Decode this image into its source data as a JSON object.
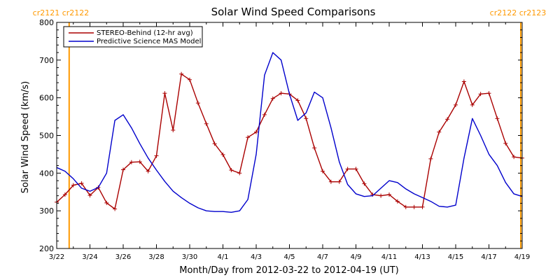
{
  "chart_data": {
    "type": "line",
    "title": "Solar Wind Speed Comparisons",
    "xlabel": "Month/Day from 2012-03-22 to 2012-04-19 (UT)",
    "ylabel": "Solar Wind Speed (km/s)",
    "xlim": [
      "2012-03-22",
      "2012-04-19"
    ],
    "ylim": [
      200,
      800
    ],
    "x_ticks": [
      "2012-03-22",
      "2012-03-24",
      "2012-03-26",
      "2012-03-28",
      "2012-03-30",
      "2012-04-01",
      "2012-04-03",
      "2012-04-05",
      "2012-04-07",
      "2012-04-09",
      "2012-04-11",
      "2012-04-13",
      "2012-04-15",
      "2012-04-17",
      "2012-04-19"
    ],
    "x_tick_labels": [
      "3/22",
      "3/24",
      "3/26",
      "3/28",
      "3/30",
      "4/1",
      "4/3",
      "4/5",
      "4/7",
      "4/9",
      "4/11",
      "4/13",
      "4/15",
      "4/17",
      "4/19"
    ],
    "y_ticks": [
      200,
      300,
      400,
      500,
      600,
      700,
      800
    ],
    "y_tick_labels": [
      "200",
      "300",
      "400",
      "500",
      "600",
      "700",
      "800"
    ],
    "grid": false,
    "legend_position": "top-left",
    "carrington_markers": [
      {
        "x": "2012-03-22 18:00",
        "label": "cr2121 cr2122",
        "color": "#ff9900"
      },
      {
        "x": "2012-04-18 22:00",
        "label": "cr2122 cr2123",
        "color": "#ff9900"
      }
    ],
    "series": [
      {
        "name": "STEREO-Behind (12-hr avg)",
        "color": "#aa0000",
        "marker": "plus",
        "x": [
          "2012-03-22 00:00",
          "2012-03-22 12:00",
          "2012-03-23 00:00",
          "2012-03-23 12:00",
          "2012-03-24 00:00",
          "2012-03-24 12:00",
          "2012-03-25 00:00",
          "2012-03-25 12:00",
          "2012-03-26 00:00",
          "2012-03-26 12:00",
          "2012-03-27 00:00",
          "2012-03-27 12:00",
          "2012-03-28 00:00",
          "2012-03-28 12:00",
          "2012-03-29 00:00",
          "2012-03-29 12:00",
          "2012-03-30 00:00",
          "2012-03-30 12:00",
          "2012-03-31 00:00",
          "2012-03-31 12:00",
          "2012-04-01 00:00",
          "2012-04-01 12:00",
          "2012-04-02 00:00",
          "2012-04-02 12:00",
          "2012-04-03 00:00",
          "2012-04-03 12:00",
          "2012-04-04 00:00",
          "2012-04-04 12:00",
          "2012-04-05 00:00",
          "2012-04-05 12:00",
          "2012-04-06 00:00",
          "2012-04-06 12:00",
          "2012-04-07 00:00",
          "2012-04-07 12:00",
          "2012-04-08 00:00",
          "2012-04-08 12:00",
          "2012-04-09 00:00",
          "2012-04-09 12:00",
          "2012-04-10 00:00",
          "2012-04-10 12:00",
          "2012-04-11 00:00",
          "2012-04-11 12:00",
          "2012-04-12 00:00",
          "2012-04-12 12:00",
          "2012-04-13 00:00",
          "2012-04-13 12:00",
          "2012-04-14 00:00",
          "2012-04-14 12:00",
          "2012-04-15 00:00",
          "2012-04-15 12:00",
          "2012-04-16 00:00",
          "2012-04-16 12:00",
          "2012-04-17 00:00",
          "2012-04-17 12:00",
          "2012-04-18 00:00",
          "2012-04-18 12:00",
          "2012-04-19 00:00"
        ],
        "values": [
          323,
          343,
          368,
          373,
          341,
          362,
          321,
          305,
          409,
          429,
          430,
          405,
          446,
          612,
          514,
          663,
          648,
          586,
          531,
          478,
          449,
          408,
          400,
          495,
          509,
          555,
          598,
          612,
          610,
          593,
          545,
          467,
          405,
          377,
          377,
          411,
          411,
          372,
          343,
          340,
          343,
          325,
          310,
          310,
          310,
          438,
          509,
          543,
          581,
          643,
          581,
          610,
          612,
          545,
          479,
          443,
          440
        ]
      },
      {
        "name": "Predictive Science MAS Model",
        "color": "#0000cc",
        "x": [
          "2012-03-22 00:00",
          "2012-03-22 12:00",
          "2012-03-23 00:00",
          "2012-03-23 12:00",
          "2012-03-24 00:00",
          "2012-03-24 12:00",
          "2012-03-25 00:00",
          "2012-03-25 12:00",
          "2012-03-26 00:00",
          "2012-03-26 12:00",
          "2012-03-27 00:00",
          "2012-03-27 12:00",
          "2012-03-28 00:00",
          "2012-03-28 12:00",
          "2012-03-29 00:00",
          "2012-03-29 12:00",
          "2012-03-30 00:00",
          "2012-03-30 12:00",
          "2012-03-31 00:00",
          "2012-03-31 12:00",
          "2012-04-01 00:00",
          "2012-04-01 12:00",
          "2012-04-02 00:00",
          "2012-04-02 12:00",
          "2012-04-03 00:00",
          "2012-04-03 12:00",
          "2012-04-04 00:00",
          "2012-04-04 12:00",
          "2012-04-05 00:00",
          "2012-04-05 12:00",
          "2012-04-06 00:00",
          "2012-04-06 12:00",
          "2012-04-07 00:00",
          "2012-04-07 12:00",
          "2012-04-08 00:00",
          "2012-04-08 12:00",
          "2012-04-09 00:00",
          "2012-04-09 12:00",
          "2012-04-10 00:00",
          "2012-04-10 12:00",
          "2012-04-11 00:00",
          "2012-04-11 12:00",
          "2012-04-12 00:00",
          "2012-04-12 12:00",
          "2012-04-13 00:00",
          "2012-04-13 12:00",
          "2012-04-14 00:00",
          "2012-04-14 12:00",
          "2012-04-15 00:00",
          "2012-04-15 12:00",
          "2012-04-16 00:00",
          "2012-04-16 12:00",
          "2012-04-17 00:00",
          "2012-04-17 12:00",
          "2012-04-18 00:00",
          "2012-04-18 12:00",
          "2012-04-19 00:00"
        ],
        "values": [
          415,
          405,
          385,
          360,
          352,
          362,
          400,
          540,
          555,
          520,
          478,
          440,
          408,
          378,
          352,
          335,
          320,
          308,
          300,
          298,
          298,
          296,
          300,
          330,
          450,
          660,
          720,
          700,
          610,
          540,
          560,
          615,
          600,
          520,
          430,
          370,
          345,
          338,
          340,
          360,
          380,
          375,
          358,
          345,
          335,
          325,
          312,
          310,
          315,
          440,
          545,
          500,
          450,
          420,
          375,
          345,
          338
        ]
      }
    ]
  }
}
